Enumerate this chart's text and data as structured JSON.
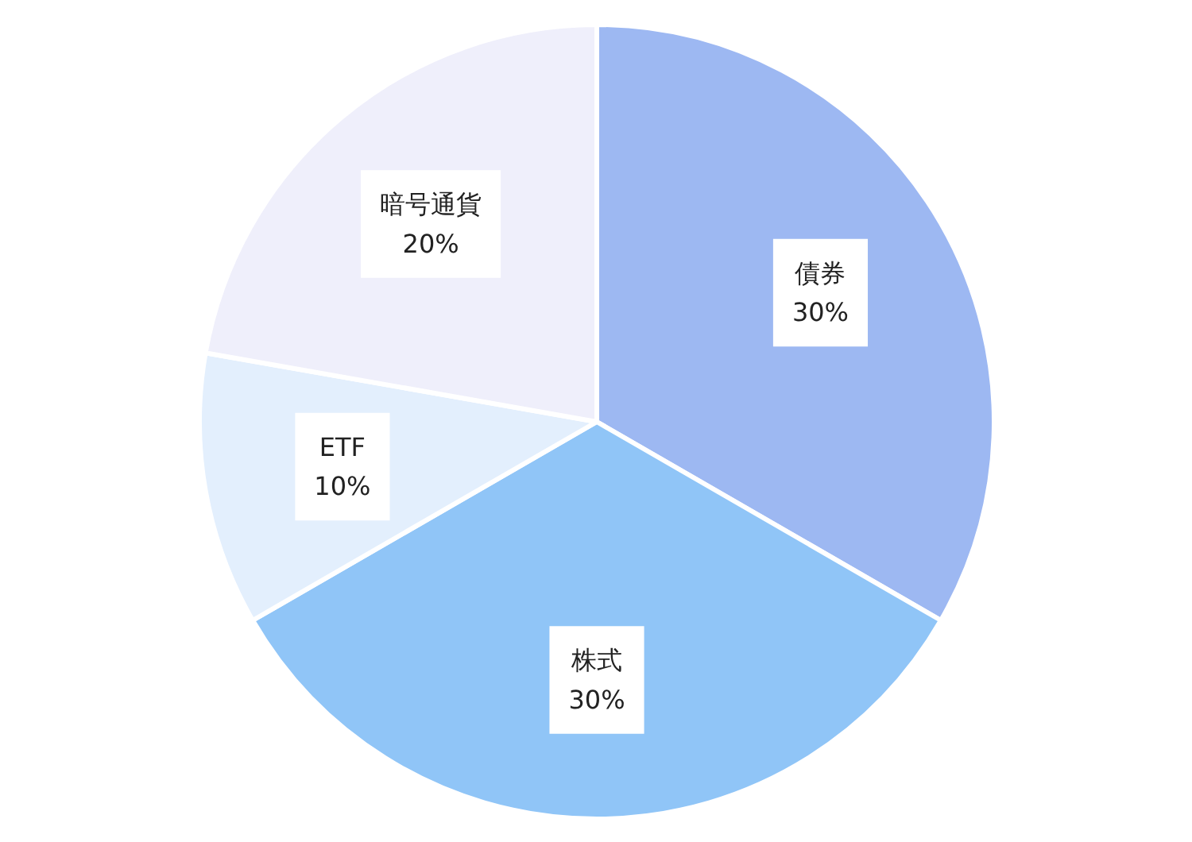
{
  "chart_data": {
    "type": "pie",
    "categories": [
      "債券",
      "株式",
      "ETF",
      "暗号通貨"
    ],
    "values": [
      30,
      30,
      10,
      20
    ],
    "value_labels": [
      "30%",
      "30%",
      "10%",
      "20%"
    ],
    "colors": [
      "#9db8f2",
      "#90c5f7",
      "#e3effd",
      "#efeffb"
    ]
  }
}
